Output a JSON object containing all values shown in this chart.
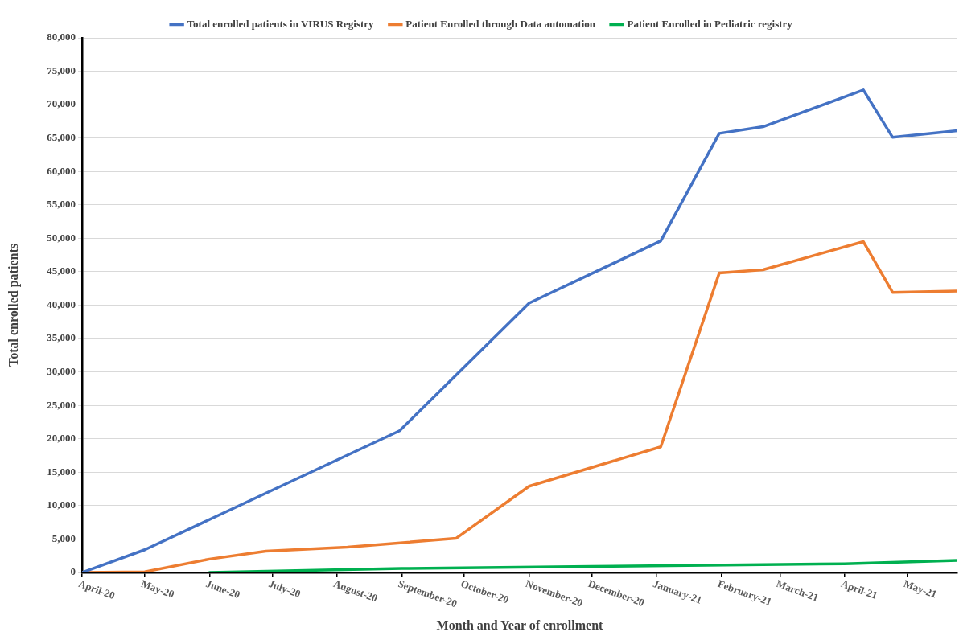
{
  "chart_data": {
    "type": "line",
    "xlabel": "Month and Year of enrollment",
    "ylabel": "Total enrolled patients",
    "series": [
      {
        "name": "Total enrolled patients in VIRUS Registry",
        "color": "#4472c4",
        "x": [
          "2020-04-01",
          "2020-05-01",
          "2020-08-31",
          "2020-11-01",
          "2021-01-03",
          "2021-01-31",
          "2021-02-21",
          "2021-04-10",
          "2021-04-24",
          "2021-05-25"
        ],
        "values": [
          0,
          3400,
          21200,
          40300,
          49600,
          65700,
          66700,
          72200,
          65100,
          66100
        ]
      },
      {
        "name": "Patient Enrolled through Data automation",
        "color": "#ed7d31",
        "x": [
          "2020-04-01",
          "2020-05-01",
          "2020-06-01",
          "2020-06-28",
          "2020-08-06",
          "2020-09-27",
          "2020-11-01",
          "2021-01-03",
          "2021-01-31",
          "2021-02-21",
          "2021-04-10",
          "2021-04-24",
          "2021-05-25"
        ],
        "values": [
          0,
          100,
          2000,
          3200,
          3800,
          5100,
          12900,
          18800,
          44800,
          45300,
          49500,
          41900,
          42100
        ]
      },
      {
        "name": "Patient Enrolled in Pediatric registry",
        "color": "#00b050",
        "x": [
          "2020-06-01",
          "2020-09-01",
          "2020-12-01",
          "2021-04-01",
          "2021-05-25"
        ],
        "values": [
          0,
          600,
          900,
          1300,
          1800
        ]
      }
    ],
    "xlim": [
      "2020-04-01",
      "2021-05-25"
    ],
    "xticks": [
      {
        "value": "2020-04-01",
        "label": "April-20"
      },
      {
        "value": "2020-05-01",
        "label": "May-20"
      },
      {
        "value": "2020-06-01",
        "label": "June-20"
      },
      {
        "value": "2020-07-01",
        "label": "July-20"
      },
      {
        "value": "2020-08-01",
        "label": "August-20"
      },
      {
        "value": "2020-09-01",
        "label": "September-20"
      },
      {
        "value": "2020-10-01",
        "label": "October-20"
      },
      {
        "value": "2020-11-01",
        "label": "November-20"
      },
      {
        "value": "2020-12-01",
        "label": "December-20"
      },
      {
        "value": "2021-01-01",
        "label": "January-21"
      },
      {
        "value": "2021-02-01",
        "label": "February-21"
      },
      {
        "value": "2021-03-01",
        "label": "March-21"
      },
      {
        "value": "2021-04-01",
        "label": "April-21"
      },
      {
        "value": "2021-05-01",
        "label": "May-21"
      }
    ],
    "ylim": [
      0,
      80000
    ],
    "yticks": [
      {
        "value": 0,
        "label": "0"
      },
      {
        "value": 5000,
        "label": "5,000"
      },
      {
        "value": 10000,
        "label": "10,000"
      },
      {
        "value": 15000,
        "label": "15,000"
      },
      {
        "value": 20000,
        "label": "20,000"
      },
      {
        "value": 25000,
        "label": "25,000"
      },
      {
        "value": 30000,
        "label": "30,000"
      },
      {
        "value": 35000,
        "label": "35,000"
      },
      {
        "value": 40000,
        "label": "40,000"
      },
      {
        "value": 45000,
        "label": "45,000"
      },
      {
        "value": 50000,
        "label": "50,000"
      },
      {
        "value": 55000,
        "label": "55,000"
      },
      {
        "value": 60000,
        "label": "60,000"
      },
      {
        "value": 65000,
        "label": "65,000"
      },
      {
        "value": 70000,
        "label": "70,000"
      },
      {
        "value": 75000,
        "label": "75,000"
      },
      {
        "value": 80000,
        "label": "80,000"
      }
    ],
    "grid": "y",
    "legend": "top",
    "marker": "none",
    "line_style": "solid"
  }
}
